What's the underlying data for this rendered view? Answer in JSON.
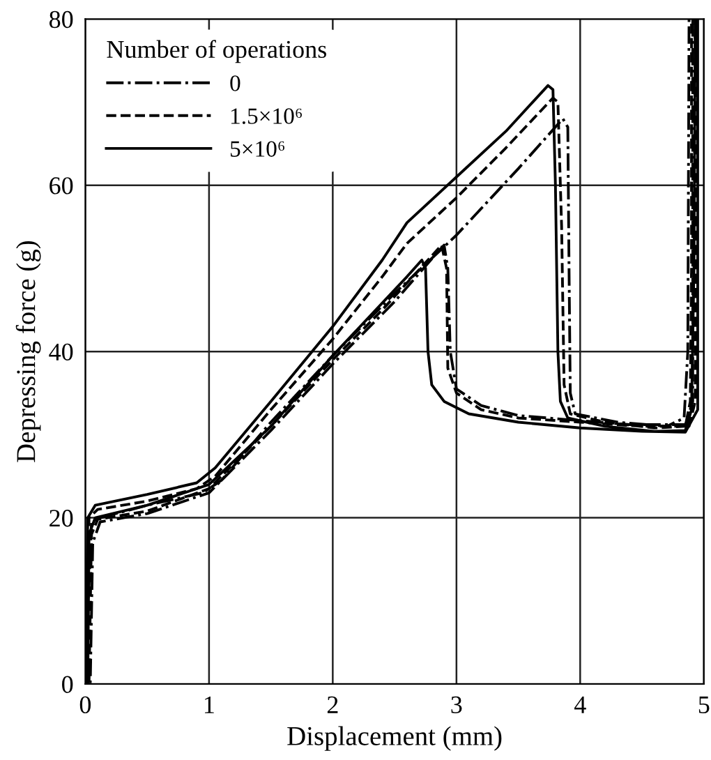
{
  "chart_data": {
    "type": "line",
    "xlabel": "Displacement (mm)",
    "ylabel": "Depressing force (g)",
    "legend_title": "Number of operations",
    "xlim": [
      0,
      5
    ],
    "ylim": [
      0,
      80
    ],
    "xticks": [
      0,
      1,
      2,
      3,
      4,
      5
    ],
    "yticks": [
      0,
      20,
      40,
      60,
      80
    ],
    "grid": true,
    "legend": "top left",
    "marker": "none",
    "series": [
      {
        "name": "0",
        "color": "#000000",
        "line_style": "dashdot",
        "x": [
          0,
          0.05,
          0.12,
          0.5,
          0.95,
          1.1,
          1.5,
          2.0,
          2.5,
          3.0,
          3.5,
          3.86,
          3.9,
          3.91,
          3.92,
          3.96,
          4.3,
          4.7,
          4.84,
          4.87,
          4.88,
          4.91,
          4.91,
          4.85,
          4.4,
          3.9,
          3.5,
          3.2,
          3.0,
          2.95,
          2.93,
          2.9,
          2.85,
          2.5,
          2.0,
          1.5,
          1.0,
          0.5,
          0.12,
          0.06,
          0.04
        ],
        "values": [
          0,
          19.5,
          20,
          21.5,
          23,
          24.5,
          31.5,
          39.5,
          47,
          54,
          62,
          68,
          67,
          50,
          35,
          32.5,
          31.5,
          31,
          32,
          40,
          80,
          80,
          34,
          31.2,
          31.2,
          31.8,
          32.3,
          33.5,
          35.5,
          40,
          50,
          52.8,
          52,
          46,
          38.5,
          30.5,
          23,
          20.5,
          19.5,
          17,
          0
        ]
      },
      {
        "name": "1.5×10⁶",
        "color": "#000000",
        "line_style": "dashed",
        "x": [
          0,
          0.03,
          0.1,
          0.5,
          0.9,
          1.05,
          1.5,
          2.0,
          2.4,
          2.6,
          3.0,
          3.4,
          3.78,
          3.82,
          3.85,
          3.87,
          3.92,
          4.2,
          4.6,
          4.85,
          4.89,
          4.9,
          4.9,
          4.93,
          4.93,
          4.88,
          4.5,
          4.0,
          3.5,
          3.2,
          3.0,
          2.93,
          2.92,
          2.88,
          2.8,
          2.4,
          2.0,
          1.5,
          1.0,
          0.5,
          0.1,
          0.05,
          0.03
        ],
        "values": [
          0,
          20,
          21,
          22,
          23.5,
          25,
          33,
          41.5,
          49,
          53,
          58.5,
          64.5,
          70.5,
          70,
          55,
          36,
          32.5,
          31.5,
          30.8,
          31,
          34,
          50,
          80,
          80,
          34,
          31,
          31,
          31.5,
          32,
          33,
          35,
          38,
          50,
          52.8,
          51.5,
          45,
          39,
          31,
          23.5,
          20.8,
          19.8,
          18,
          0
        ]
      },
      {
        "name": "5×10⁶",
        "color": "#000000",
        "line_style": "solid",
        "x": [
          0,
          0.02,
          0.08,
          0.5,
          0.9,
          1.05,
          1.5,
          2.0,
          2.4,
          2.6,
          3.0,
          3.4,
          3.74,
          3.78,
          3.8,
          3.82,
          3.84,
          3.9,
          4.2,
          4.6,
          4.85,
          4.9,
          4.92,
          4.93,
          4.95,
          4.95,
          4.85,
          4.5,
          4.0,
          3.5,
          3.1,
          2.9,
          2.8,
          2.77,
          2.75,
          2.72,
          2.6,
          2.0,
          1.5,
          1.0,
          0.5,
          0.08,
          0.03,
          0.02
        ],
        "values": [
          0,
          20,
          21.5,
          22.8,
          24.2,
          26,
          34,
          43,
          51,
          55.5,
          61,
          66.5,
          72,
          71.5,
          60,
          40,
          34,
          32,
          31,
          30.4,
          30.5,
          33,
          50,
          80,
          80,
          33,
          30.3,
          30.4,
          30.8,
          31.5,
          32.5,
          34,
          36,
          40,
          50,
          51,
          49,
          39.5,
          31,
          24,
          21.5,
          20,
          18,
          0
        ]
      }
    ]
  }
}
